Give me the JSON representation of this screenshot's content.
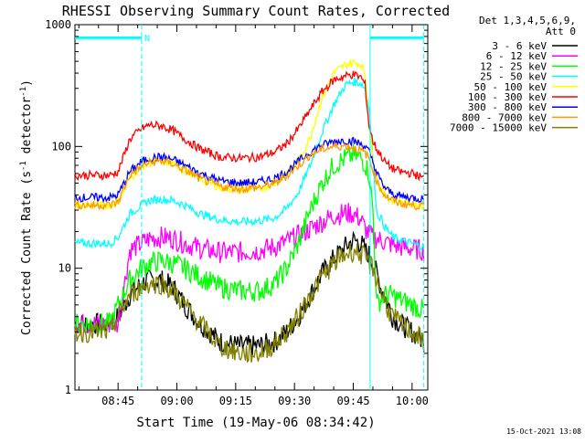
{
  "chart_data": {
    "type": "line",
    "title": "RHESSI Observing Summary Count Rates, Corrected",
    "xlabel": "Start Time (19-May-06 08:34:42)",
    "ylabel_main": "Corrected Count Rate (s",
    "ylabel_sup1": "-1",
    "ylabel_mid": " detector",
    "ylabel_sup2": "-1",
    "ylabel_end": ")",
    "yscale": "log",
    "ylim": [
      1,
      1000
    ],
    "xlim": [
      -1,
      89
    ],
    "x_unit": "minutes after 08:35",
    "y_tick_labels": [
      {
        "value": 1,
        "label": "1"
      },
      {
        "value": 10,
        "label": "10"
      },
      {
        "value": 100,
        "label": "100"
      },
      {
        "value": 1000,
        "label": "1000"
      }
    ],
    "x_tick_labels": [
      {
        "value": 10,
        "label": "08:45"
      },
      {
        "value": 25,
        "label": "09:00"
      },
      {
        "value": 40,
        "label": "09:15"
      },
      {
        "value": 55,
        "label": "09:30"
      },
      {
        "value": 70,
        "label": "09:45"
      },
      {
        "value": 85,
        "label": "10:00"
      }
    ],
    "legend_header": [
      "Det 1,3,4,5,6,9,",
      "Att 0"
    ],
    "night_marker": "N",
    "timestamp": "15-Oct-2021 13:08",
    "cyan_markers": [
      {
        "type": "dashed",
        "x": 16.0
      },
      {
        "type": "solid",
        "x": 74.3
      },
      {
        "type": "dashed",
        "x": 88.0
      }
    ],
    "cyan_bars": [
      {
        "x_start": -1,
        "x_end": 16.0,
        "y": 780
      },
      {
        "x_start": 74.3,
        "x_end": 88.0,
        "y": 780
      }
    ],
    "x": [
      -1,
      8,
      10,
      13,
      16,
      18,
      21,
      24,
      27,
      31,
      36,
      41,
      46,
      50,
      53,
      56,
      59,
      62,
      65,
      68,
      70,
      72,
      73,
      74,
      75,
      76,
      77,
      78,
      79,
      80,
      82,
      85,
      88
    ],
    "series": [
      {
        "name": "3 - 6 keV",
        "color": "#000000",
        "values": [
          3.5,
          3.5,
          4,
          6,
          7.5,
          8,
          8,
          7,
          5,
          3.5,
          2.5,
          2.3,
          2.3,
          2.5,
          3,
          4,
          6,
          9,
          12,
          15,
          17,
          16,
          14,
          13,
          11,
          9,
          7,
          6,
          5,
          4,
          3.5,
          3,
          2.5
        ]
      },
      {
        "name": "6 - 12 keV",
        "color": "#ff00ff",
        "values": [
          3.5,
          3.5,
          3.5,
          14,
          16,
          17.5,
          18,
          17.5,
          16,
          14.5,
          13.5,
          13.5,
          14,
          15,
          16.5,
          18.5,
          21,
          24,
          27,
          28.5,
          28,
          25,
          21,
          19,
          18,
          17.5,
          17,
          16.5,
          16,
          15.5,
          15,
          14.5,
          14
        ]
      },
      {
        "name": "12 - 25 keV",
        "color": "#00ff00",
        "values": [
          3.5,
          3.5,
          5,
          8,
          10,
          11,
          11.5,
          11,
          10,
          8.5,
          7,
          6.5,
          6.5,
          7.5,
          10,
          16,
          30,
          50,
          70,
          80,
          85,
          80,
          72,
          60,
          30,
          5,
          5.5,
          6,
          6,
          6,
          5.5,
          5,
          4.5
        ]
      },
      {
        "name": "25 - 50 keV",
        "color": "#00ffff",
        "values": [
          16,
          16,
          18,
          28,
          33,
          36,
          37,
          36,
          33,
          28,
          25,
          24,
          24.5,
          26,
          31,
          42,
          70,
          130,
          220,
          320,
          340,
          330,
          300,
          220,
          80,
          28,
          26,
          22,
          20,
          18,
          17,
          16,
          15
        ]
      },
      {
        "name": "50 - 100 keV",
        "color": "#ffff00",
        "values": [
          33,
          33,
          35,
          55,
          68,
          74,
          76,
          72,
          64,
          54,
          46,
          44,
          45,
          50,
          60,
          75,
          120,
          250,
          400,
          470,
          490,
          470,
          400,
          150,
          80,
          55,
          45,
          40,
          38,
          36,
          35,
          34,
          33
        ]
      },
      {
        "name": "100 - 300 keV",
        "color": "#ff0000",
        "values": [
          58,
          58,
          62,
          115,
          140,
          150,
          148,
          135,
          115,
          95,
          82,
          80,
          82,
          90,
          105,
          140,
          200,
          280,
          350,
          380,
          390,
          370,
          320,
          150,
          110,
          95,
          85,
          75,
          70,
          66,
          62,
          60,
          55
        ]
      },
      {
        "name": "300 - 800 keV",
        "color": "#0000ff",
        "values": [
          38,
          38,
          40,
          62,
          75,
          80,
          82,
          78,
          70,
          60,
          52,
          50,
          51,
          55,
          62,
          75,
          90,
          102,
          110,
          112,
          110,
          105,
          100,
          90,
          75,
          60,
          52,
          46,
          43,
          41,
          39,
          38,
          37
        ]
      },
      {
        "name": "800 - 7000 keV",
        "color": "#ff9900",
        "values": [
          33,
          33,
          35,
          58,
          68,
          74,
          76,
          72,
          64,
          54,
          47,
          45,
          46,
          50,
          57,
          70,
          85,
          95,
          100,
          101,
          98,
          92,
          88,
          80,
          65,
          52,
          45,
          40,
          38,
          36,
          34,
          33,
          32
        ]
      },
      {
        "name": "7000 - 15000 keV",
        "color": "#808000",
        "values": [
          3,
          3,
          4,
          6,
          7,
          7.5,
          7.5,
          6.5,
          5,
          3.5,
          2.3,
          2,
          2,
          2.4,
          3,
          4,
          6,
          8.5,
          11,
          13,
          14,
          13,
          12,
          11,
          10,
          8,
          6.5,
          5.5,
          4.5,
          4,
          3.5,
          3,
          2.5
        ]
      }
    ]
  }
}
